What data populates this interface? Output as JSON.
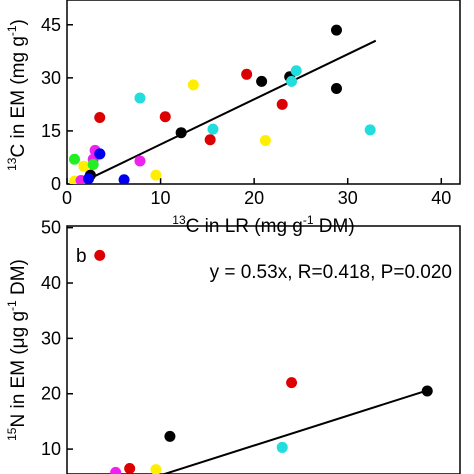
{
  "chart_data": [
    {
      "type": "scatter",
      "panel_label": "",
      "xlabel": {
        "sup": "13",
        "text": "C in LR (mg g",
        "sup2": "-1",
        "text2": " DM)"
      },
      "ylabel": {
        "sup": "13",
        "text": "C in EM (mg g",
        "sup2": "-1",
        "text2": ")"
      },
      "xlim": [
        0,
        42
      ],
      "ylim": [
        0,
        52
      ],
      "xticks": [
        0,
        10,
        20,
        30,
        40
      ],
      "yticks": [
        0,
        15,
        30,
        45
      ],
      "fit_line": {
        "x": [
          2,
          33
        ],
        "y": [
          1,
          40.5
        ]
      },
      "points": [
        {
          "x": 28.8,
          "y": 43.5,
          "color": "#000000"
        },
        {
          "x": 28.8,
          "y": 27.0,
          "color": "#000000"
        },
        {
          "x": 23.8,
          "y": 30.3,
          "color": "#000000"
        },
        {
          "x": 20.8,
          "y": 29.0,
          "color": "#000000"
        },
        {
          "x": 12.2,
          "y": 14.5,
          "color": "#000000"
        },
        {
          "x": 3.5,
          "y": 8.5,
          "color": "#000000"
        },
        {
          "x": 2.5,
          "y": 2.5,
          "color": "#000000"
        },
        {
          "x": 19.2,
          "y": 31.0,
          "color": "#dd0000"
        },
        {
          "x": 23.0,
          "y": 22.5,
          "color": "#dd0000"
        },
        {
          "x": 10.5,
          "y": 19.0,
          "color": "#dd0000"
        },
        {
          "x": 15.3,
          "y": 12.5,
          "color": "#dd0000"
        },
        {
          "x": 3.5,
          "y": 18.8,
          "color": "#dd0000"
        },
        {
          "x": 24.5,
          "y": 32.0,
          "color": "#22dddd"
        },
        {
          "x": 24.0,
          "y": 29.0,
          "color": "#22dddd"
        },
        {
          "x": 7.8,
          "y": 24.3,
          "color": "#22dddd"
        },
        {
          "x": 15.6,
          "y": 15.5,
          "color": "#22dddd"
        },
        {
          "x": 32.4,
          "y": 15.3,
          "color": "#22dddd"
        },
        {
          "x": 13.5,
          "y": 28.0,
          "color": "#ffee00"
        },
        {
          "x": 21.2,
          "y": 12.3,
          "color": "#ffee00"
        },
        {
          "x": 9.5,
          "y": 2.5,
          "color": "#ffee00"
        },
        {
          "x": 1.8,
          "y": 5.0,
          "color": "#ffee00"
        },
        {
          "x": 0.8,
          "y": 0.8,
          "color": "#ffee00"
        },
        {
          "x": 7.8,
          "y": 6.5,
          "color": "#ee22ee"
        },
        {
          "x": 3.0,
          "y": 9.5,
          "color": "#ee22ee"
        },
        {
          "x": 2.8,
          "y": 7.0,
          "color": "#ee22ee"
        },
        {
          "x": 1.5,
          "y": 1.0,
          "color": "#ee22ee"
        },
        {
          "x": 0.8,
          "y": 7.0,
          "color": "#22ee22"
        },
        {
          "x": 2.8,
          "y": 5.5,
          "color": "#22ee22"
        },
        {
          "x": 6.1,
          "y": 1.2,
          "color": "#0000ee"
        },
        {
          "x": 2.3,
          "y": 1.5,
          "color": "#0000ee"
        },
        {
          "x": 3.5,
          "y": 8.5,
          "color": "#0000ee"
        }
      ]
    },
    {
      "type": "scatter",
      "panel_label": "b",
      "annotation": "y = 0.53x, R=0.418, P=0.020",
      "xlabel": {
        "sup": "",
        "text": "",
        "sup2": "",
        "text2": ""
      },
      "ylabel": {
        "sup": "15",
        "text": "N in EM (",
        "mu": "μ",
        "text_mid": "g g",
        "sup2": "-1",
        "text2": " DM)"
      },
      "xlim": [
        0,
        42
      ],
      "ylim": [
        5.5,
        50.3
      ],
      "xticks": [],
      "yticks": [
        10,
        20,
        30,
        40,
        50
      ],
      "fit_line": {
        "x": [
          9.5,
          38.5
        ],
        "y": [
          5.0,
          20.6
        ]
      },
      "points": [
        {
          "x": 3.5,
          "y": 45.0,
          "color": "#dd0000"
        },
        {
          "x": 24.0,
          "y": 22.0,
          "color": "#dd0000"
        },
        {
          "x": 6.7,
          "y": 6.5,
          "color": "#dd0000"
        },
        {
          "x": 38.5,
          "y": 20.5,
          "color": "#000000"
        },
        {
          "x": 11.0,
          "y": 12.3,
          "color": "#000000"
        },
        {
          "x": 23.0,
          "y": 10.3,
          "color": "#22dddd"
        },
        {
          "x": 5.2,
          "y": 5.8,
          "color": "#ee22ee"
        },
        {
          "x": 9.5,
          "y": 6.3,
          "color": "#ffee00"
        }
      ]
    }
  ]
}
